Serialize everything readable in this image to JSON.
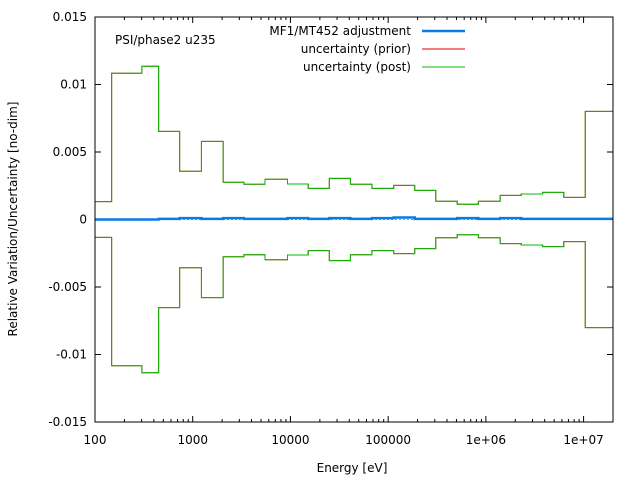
{
  "chart_data": {
    "type": "line",
    "step": true,
    "annotation": "PSI/phase2 u235",
    "xlabel": "Energy [eV]",
    "ylabel": "Relative Variation/Uncertainty [no-dim]",
    "xscale": "log",
    "xlim": [
      100,
      20000000
    ],
    "ylim": [
      -0.015,
      0.015
    ],
    "grid": false,
    "legend_position": "top-center",
    "xticks": [
      {
        "v": 100,
        "label": "100"
      },
      {
        "v": 1000,
        "label": "1000"
      },
      {
        "v": 10000,
        "label": "10000"
      },
      {
        "v": 100000,
        "label": "100000"
      },
      {
        "v": 1000000,
        "label": "1e+06"
      },
      {
        "v": 10000000,
        "label": "1e+07"
      }
    ],
    "yticks": [
      {
        "v": 0.015,
        "label": "0.015"
      },
      {
        "v": 0.01,
        "label": "0.01"
      },
      {
        "v": 0.005,
        "label": "0.005"
      },
      {
        "v": 0,
        "label": "0"
      },
      {
        "v": -0.005,
        "label": "-0.005"
      },
      {
        "v": -0.01,
        "label": "-0.01"
      },
      {
        "v": -0.015,
        "label": "-0.015"
      }
    ],
    "bin_edges": [
      100,
      148,
      302,
      448,
      735,
      1228,
      2050,
      3340,
      5490,
      9330,
      15200,
      25000,
      41100,
      68200,
      114000,
      187000,
      307000,
      509000,
      838000,
      1400000,
      2300000,
      3810000,
      6270000,
      10400000,
      20000000
    ],
    "series": [
      {
        "name": "MF1/MT452 adjustment",
        "color": "#0a7ae6",
        "symmetric": false,
        "values": [
          0,
          0,
          0,
          5e-05,
          0.0001,
          5e-05,
          0.0001,
          5e-05,
          5e-05,
          0.0001,
          5e-05,
          0.0001,
          5e-05,
          0.0001,
          0.00015,
          5e-05,
          5e-05,
          0.0001,
          5e-05,
          0.0001,
          5e-05,
          5e-05,
          5e-05,
          5e-05
        ]
      },
      {
        "name": "uncertainty (prior)",
        "color": "#e00000",
        "symmetric": true,
        "values": [
          0.00132,
          0.01083,
          0.01135,
          0.00653,
          0.00357,
          0.00579,
          0.00276,
          0.00261,
          0.00298,
          0.00263,
          0.00231,
          0.00305,
          0.00261,
          0.00231,
          0.00253,
          0.00216,
          0.00135,
          0.00113,
          0.00135,
          0.00179,
          0.00189,
          0.00201,
          0.00164,
          0.00801
        ]
      },
      {
        "name": "uncertainty (post)",
        "color": "#00bb00",
        "symmetric": true,
        "values": [
          0.00132,
          0.01083,
          0.01135,
          0.00653,
          0.00357,
          0.00579,
          0.00276,
          0.00261,
          0.00298,
          0.00263,
          0.00231,
          0.00305,
          0.00261,
          0.00231,
          0.00253,
          0.00216,
          0.00135,
          0.00113,
          0.00135,
          0.00179,
          0.00189,
          0.00201,
          0.00164,
          0.00801
        ]
      }
    ]
  }
}
